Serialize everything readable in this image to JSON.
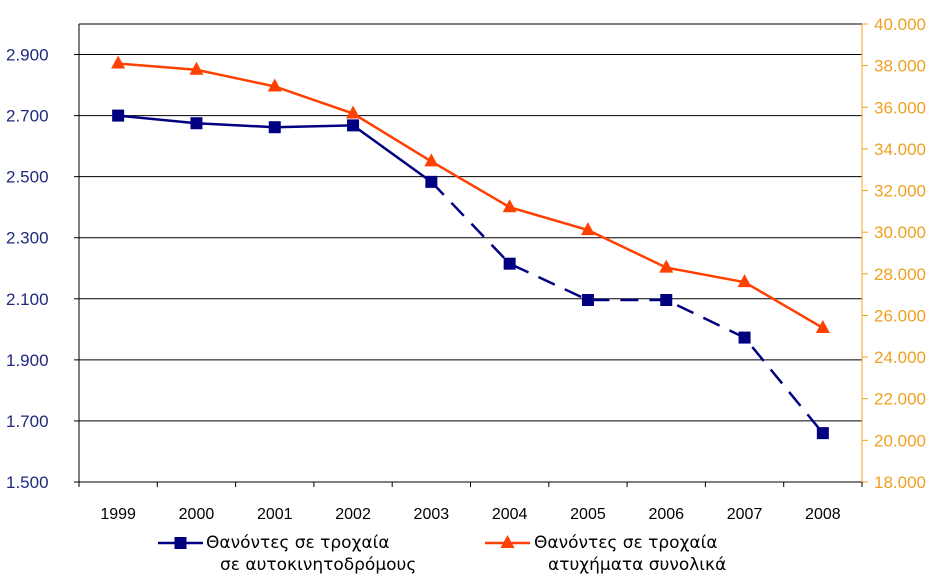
{
  "chart_data": {
    "type": "line",
    "categories": [
      "1999",
      "2000",
      "2001",
      "2002",
      "2003",
      "2004",
      "2005",
      "2006",
      "2007",
      "2008"
    ],
    "series": [
      {
        "name": "Θανόντες σε τροχαία σε αυτοκινητοδρόμους",
        "name_lines": [
          "Θανόντες σε τροχαία",
          "σε αυτοκινητοδρόμους"
        ],
        "axis": "left",
        "color": "#000080",
        "marker": "square",
        "values": [
          2700,
          2675,
          2662,
          2668,
          2483,
          2215,
          2096,
          2096,
          1973,
          1660
        ],
        "solid_through_index": 4
      },
      {
        "name": "Θανόντες σε τροχαία ατυχήματα συνολικά",
        "name_lines": [
          "Θανόντες σε τροχαία",
          "ατυχήματα συνολικά"
        ],
        "axis": "right",
        "color": "#ff4000",
        "marker": "triangle",
        "values": [
          38100,
          37800,
          37000,
          35700,
          33400,
          31200,
          30100,
          28300,
          27600,
          25400
        ]
      }
    ],
    "y_left": {
      "ylim": [
        1500,
        3000
      ],
      "ticks": [
        1500,
        1700,
        1900,
        2100,
        2300,
        2500,
        2700,
        2900
      ],
      "tick_labels": [
        "1.500",
        "1.700",
        "1.900",
        "2.100",
        "2.300",
        "2.500",
        "2.700",
        "2.900"
      ],
      "color": "#1f2a7a"
    },
    "y_right": {
      "ylim": [
        18000,
        40000
      ],
      "ticks": [
        18000,
        20000,
        22000,
        24000,
        26000,
        28000,
        30000,
        32000,
        34000,
        36000,
        38000,
        40000
      ],
      "tick_labels": [
        "18.000",
        "20.000",
        "22.000",
        "24.000",
        "26.000",
        "28.000",
        "30.000",
        "32.000",
        "34.000",
        "36.000",
        "38.000",
        "40.000"
      ],
      "color": "#f0a020"
    },
    "grid": true,
    "legend_position": "bottom",
    "title": "",
    "xlabel": "",
    "ylabel": ""
  }
}
